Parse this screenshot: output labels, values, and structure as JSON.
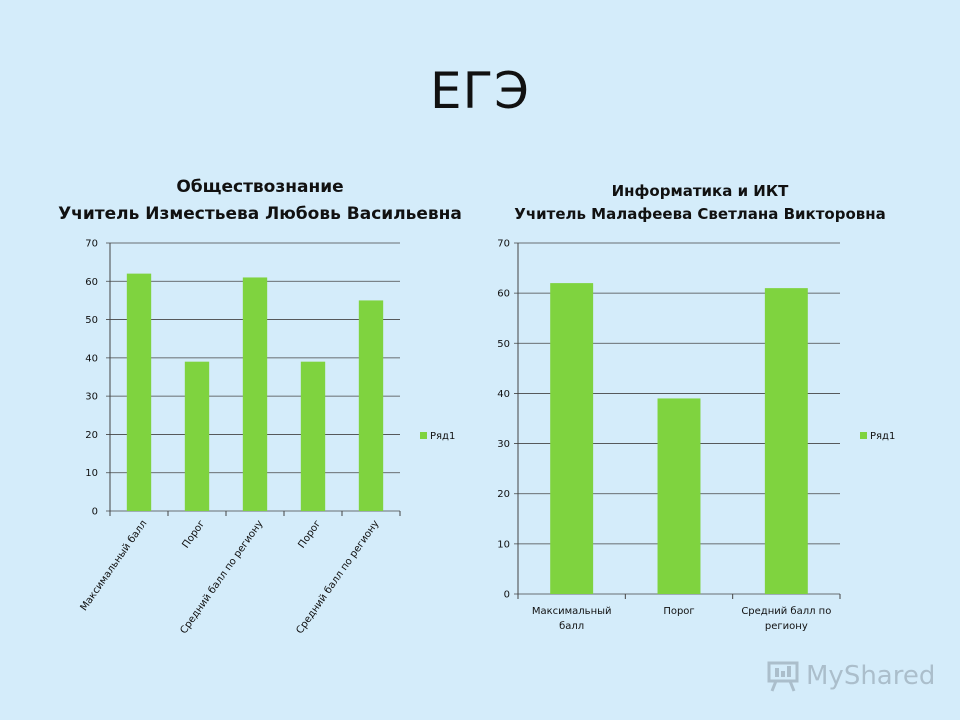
{
  "slide": {
    "title": "ЕГЭ"
  },
  "watermark": {
    "text": "MyShared",
    "icon": "presentation-board-icon"
  },
  "colors": {
    "background": "#d4ecfa",
    "bar": "#7fd33f",
    "grid": "#444444"
  },
  "chart_data": [
    {
      "type": "bar",
      "title_lines": [
        "Обществознание",
        "Учитель Изместьева Любовь Васильевна"
      ],
      "categories": [
        "Максимальный балл",
        "Порог",
        "Средний балл по региону",
        "Порог",
        "Средний балл по региону"
      ],
      "series": [
        {
          "name": "Ряд1",
          "values": [
            62,
            39,
            61,
            39,
            55
          ]
        }
      ],
      "ylim": [
        0,
        70
      ],
      "yticks": [
        0,
        10,
        20,
        30,
        40,
        50,
        60,
        70
      ],
      "grid": true,
      "legend": "right",
      "category_label_rotation": "rotated"
    },
    {
      "type": "bar",
      "title_lines": [
        "Информатика и ИКТ",
        "Учитель Малафеева Светлана Викторовна"
      ],
      "categories": [
        "Максимальный балл",
        "Порог",
        "Средний балл по региону"
      ],
      "series": [
        {
          "name": "Ряд1",
          "values": [
            62,
            39,
            61
          ]
        }
      ],
      "ylim": [
        0,
        70
      ],
      "yticks": [
        0,
        10,
        20,
        30,
        40,
        50,
        60,
        70
      ],
      "grid": true,
      "legend": "right",
      "category_label_rotation": "horizontal"
    }
  ]
}
